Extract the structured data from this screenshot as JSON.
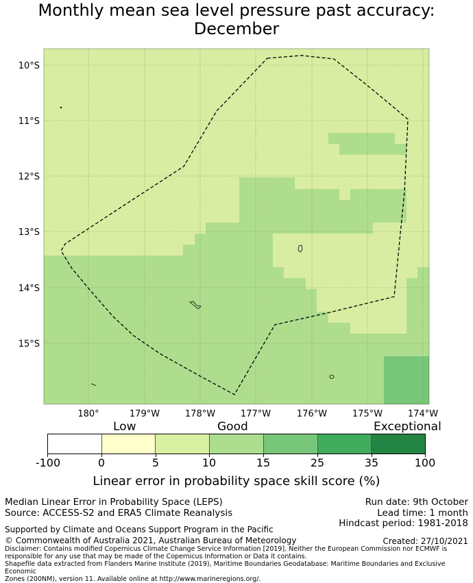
{
  "title": {
    "line1": "Monthly mean sea level pressure past accuracy:",
    "line2": "December"
  },
  "map": {
    "lat_labels": [
      "10°S",
      "11°S",
      "12°S",
      "13°S",
      "14°S",
      "15°S"
    ],
    "lon_labels": [
      "180°",
      "179°W",
      "178°W",
      "177°W",
      "176°W",
      "175°W",
      "174°W"
    ],
    "extent": {
      "lon_min": -180.8,
      "lon_max": -173.9,
      "lat_max": -9.7,
      "lat_min": -16.07
    },
    "colors": {
      "light_green": "#d9eda2",
      "mid_green": "#aedd8e",
      "dark_green": "#78c679",
      "grid": "#6b8f5e",
      "boundary": "#000000"
    },
    "zones": [
      {
        "name": "good-zone-band-west",
        "category": "good-high",
        "lon_range": [
          -180.8,
          -178.2
        ],
        "lat_range": [
          -13.42,
          -16.07
        ]
      },
      {
        "name": "good-zone-band-center",
        "category": "good-high",
        "lon_range": [
          -178.2,
          -176.4
        ],
        "lat_range": [
          -12.85,
          -16.07
        ]
      },
      {
        "name": "good-zone-north-block",
        "category": "good-high",
        "lon_range": [
          -177.2,
          -174.6
        ],
        "lat_range": [
          -12.02,
          -12.85
        ]
      },
      {
        "name": "good-zone-northeast-patch",
        "category": "good-high",
        "lon_range": [
          -175.7,
          -174.7
        ],
        "lat_range": [
          -11.22,
          -11.62
        ]
      },
      {
        "name": "good-zone-east-band",
        "category": "good-high",
        "lon_range": [
          -174.6,
          -173.9
        ],
        "lat_range": [
          -13.62,
          -16.07
        ]
      },
      {
        "name": "good-zone-southeast",
        "category": "good-high",
        "lon_range": [
          -176.1,
          -173.9
        ],
        "lat_range": [
          -14.82,
          -16.07
        ]
      },
      {
        "name": "exceptional-edge-zone",
        "category": "very-good",
        "lon_range": [
          -174.7,
          -173.9
        ],
        "lat_range": [
          -15.22,
          -16.07
        ]
      }
    ],
    "boundary_name": "eez-boundary-dashed"
  },
  "colorbar": {
    "categories": [
      "Low",
      "Good",
      "Exceptional"
    ],
    "ticks": [
      "-100",
      "0",
      "5",
      "10",
      "15",
      "25",
      "35",
      "100"
    ],
    "colors": [
      "#ffffff",
      "#ffffcc",
      "#d9f0a3",
      "#addd8e",
      "#78c679",
      "#41ab5d",
      "#238443"
    ],
    "label": "Linear error in probability space skill score (%)"
  },
  "info": {
    "method": "Median Linear Error in Probability Space (LEPS)",
    "source": "Source: ACCESS-S2 and ERA5 Climate Reanalysis",
    "run_date": "Run date: 9th October",
    "lead_time": "Lead time: 1 month",
    "hindcast": "Hindcast period: 1981-2018",
    "support": "Supported by Climate and Oceans Support Program in the Pacific",
    "copyright": "© Commonwealth of Australia 2021, Australian Bureau of Meteorology",
    "created": "Created: 27/10/2021",
    "disclaimer_1": "Disclaimer: Contains modified Copernicus Climate Change Service Information [2019]. Neither the European Commission nor ECMWF is",
    "disclaimer_2": "responsible for any use that may be made of the Copernicus Information or Data it contains.",
    "disclaimer_3": "Shapefile data extracted from Flanders Marine Institute (2019), Maritime Boundaries Geodatabase: Maritime Boundaries and Exclusive Economic",
    "disclaimer_4": "Zones (200NM), version 11. Available online at http://www.marineregions.org/."
  }
}
